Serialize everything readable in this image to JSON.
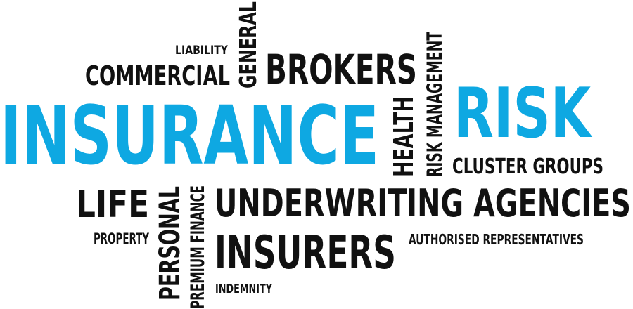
{
  "colors": {
    "blue": "#0ea8e2",
    "black": "#111111"
  },
  "words": {
    "liability": "LIABILITY",
    "general": "GENERAL",
    "commercial": "COMMERCIAL",
    "brokers": "BROKERS",
    "risk_management": "RISK MANAGEMENT",
    "health": "HEALTH",
    "insurance": "INSURANCE",
    "risk": "RISK",
    "cluster_groups": "CLUSTER GROUPS",
    "life": "LIFE",
    "personal": "PERSONAL",
    "premium_finance": "PREMIUM FINANCE",
    "underwriting_agencies": "UNDERWRITING AGENCIES",
    "property": "PROPERTY",
    "insurers": "INSURERS",
    "authorised_representatives": "AUTHORISED REPRESENTATIVES",
    "indemnity": "INDEMNITY"
  }
}
